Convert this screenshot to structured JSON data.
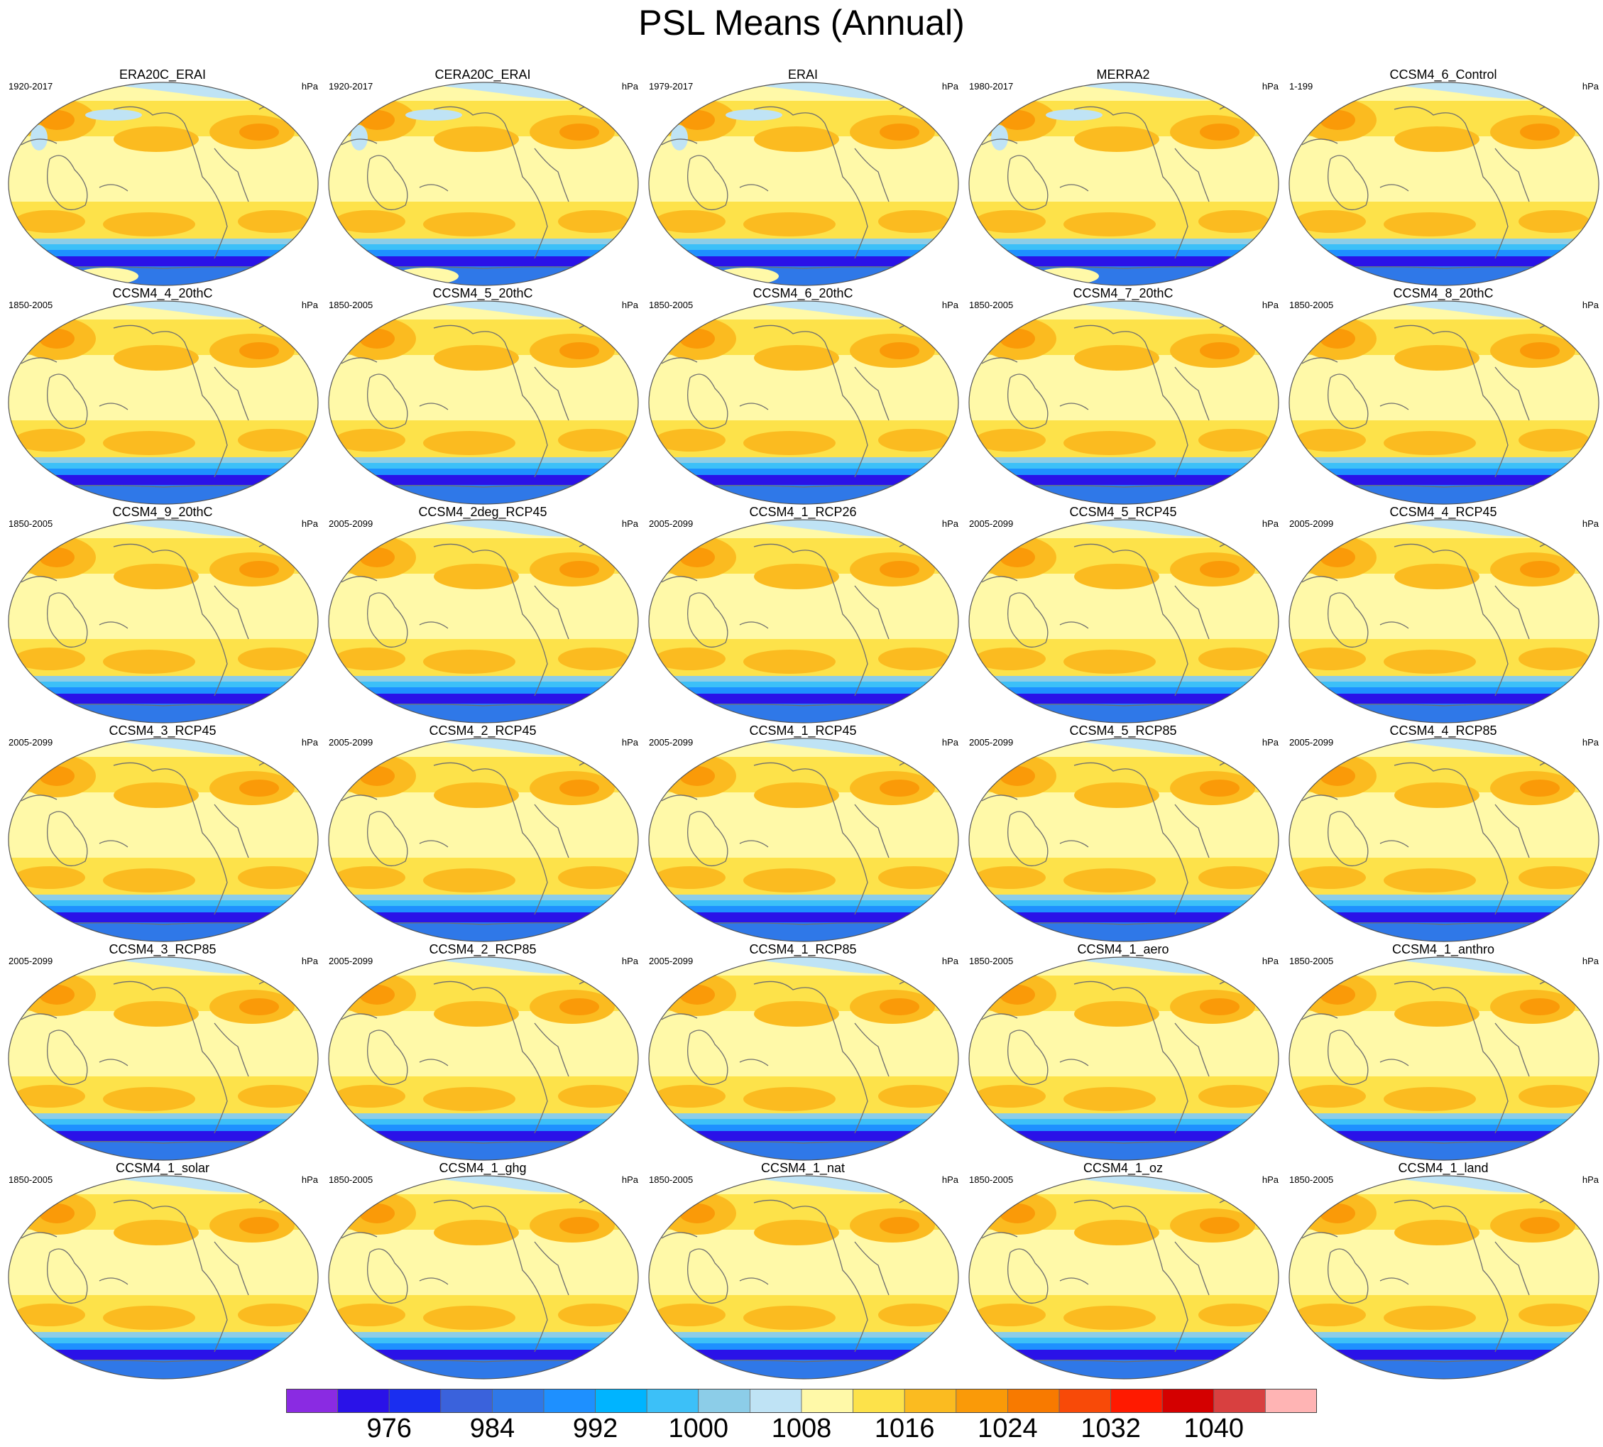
{
  "title": "PSL Means (Annual)",
  "units": "hPa",
  "panels": [
    {
      "name": "ERA20C_ERAI",
      "period": "1920-2017",
      "style": "reanalysis"
    },
    {
      "name": "CERA20C_ERAI",
      "period": "1920-2017",
      "style": "reanalysis"
    },
    {
      "name": "ERAI",
      "period": "1979-2017",
      "style": "reanalysis"
    },
    {
      "name": "MERRA2",
      "period": "1980-2017",
      "style": "reanalysis"
    },
    {
      "name": "CCSM4_6_Control",
      "period": "1-199",
      "style": "model"
    },
    {
      "name": "CCSM4_4_20thC",
      "period": "1850-2005",
      "style": "model"
    },
    {
      "name": "CCSM4_5_20thC",
      "period": "1850-2005",
      "style": "model"
    },
    {
      "name": "CCSM4_6_20thC",
      "period": "1850-2005",
      "style": "model"
    },
    {
      "name": "CCSM4_7_20thC",
      "period": "1850-2005",
      "style": "model"
    },
    {
      "name": "CCSM4_8_20thC",
      "period": "1850-2005",
      "style": "model"
    },
    {
      "name": "CCSM4_9_20thC",
      "period": "1850-2005",
      "style": "model"
    },
    {
      "name": "CCSM4_2deg_RCP45",
      "period": "2005-2099",
      "style": "model"
    },
    {
      "name": "CCSM4_1_RCP26",
      "period": "2005-2099",
      "style": "model"
    },
    {
      "name": "CCSM4_5_RCP45",
      "period": "2005-2099",
      "style": "model"
    },
    {
      "name": "CCSM4_4_RCP45",
      "period": "2005-2099",
      "style": "model"
    },
    {
      "name": "CCSM4_3_RCP45",
      "period": "2005-2099",
      "style": "model"
    },
    {
      "name": "CCSM4_2_RCP45",
      "period": "2005-2099",
      "style": "model"
    },
    {
      "name": "CCSM4_1_RCP45",
      "period": "2005-2099",
      "style": "model"
    },
    {
      "name": "CCSM4_5_RCP85",
      "period": "2005-2099",
      "style": "model"
    },
    {
      "name": "CCSM4_4_RCP85",
      "period": "2005-2099",
      "style": "model"
    },
    {
      "name": "CCSM4_3_RCP85",
      "period": "2005-2099",
      "style": "model"
    },
    {
      "name": "CCSM4_2_RCP85",
      "period": "2005-2099",
      "style": "model"
    },
    {
      "name": "CCSM4_1_RCP85",
      "period": "2005-2099",
      "style": "model"
    },
    {
      "name": "CCSM4_1_aero",
      "period": "1850-2005",
      "style": "model"
    },
    {
      "name": "CCSM4_1_anthro",
      "period": "1850-2005",
      "style": "model"
    },
    {
      "name": "CCSM4_1_solar",
      "period": "1850-2005",
      "style": "model"
    },
    {
      "name": "CCSM4_1_ghg",
      "period": "1850-2005",
      "style": "model"
    },
    {
      "name": "CCSM4_1_nat",
      "period": "1850-2005",
      "style": "model"
    },
    {
      "name": "CCSM4_1_oz",
      "period": "1850-2005",
      "style": "model"
    },
    {
      "name": "CCSM4_1_land",
      "period": "1850-2005",
      "style": "model"
    }
  ],
  "colorbar": {
    "colors": [
      "#8a2be2",
      "#2a12e8",
      "#1a2ef0",
      "#3a62dc",
      "#2f78e8",
      "#1e90ff",
      "#00b4ff",
      "#3cc0f8",
      "#8ccde8",
      "#bfe3f5",
      "#fff9a8",
      "#fde24a",
      "#fbbb20",
      "#fa9a08",
      "#f87a00",
      "#f84a08",
      "#ff1a00",
      "#d40000",
      "#d84040",
      "#ffb4b4"
    ],
    "labels": [
      "976",
      "984",
      "992",
      "1000",
      "1008",
      "1016",
      "1024",
      "1032",
      "1040"
    ]
  },
  "map_colors": {
    "ocean_high": "#fff9a8",
    "subtropical_high": "#fde24a",
    "high_core": "#fbbb20",
    "high_peak": "#fa9a08",
    "arctic_low": "#bfe3f5",
    "southern_low_1": "#8ccde8",
    "southern_low_2": "#3cc0f8",
    "southern_low_3": "#1e90ff",
    "southern_low_4": "#2f78e8",
    "antarctic_low": "#2a12e8",
    "coastline": "#6e6e6e",
    "outline": "#555555"
  }
}
